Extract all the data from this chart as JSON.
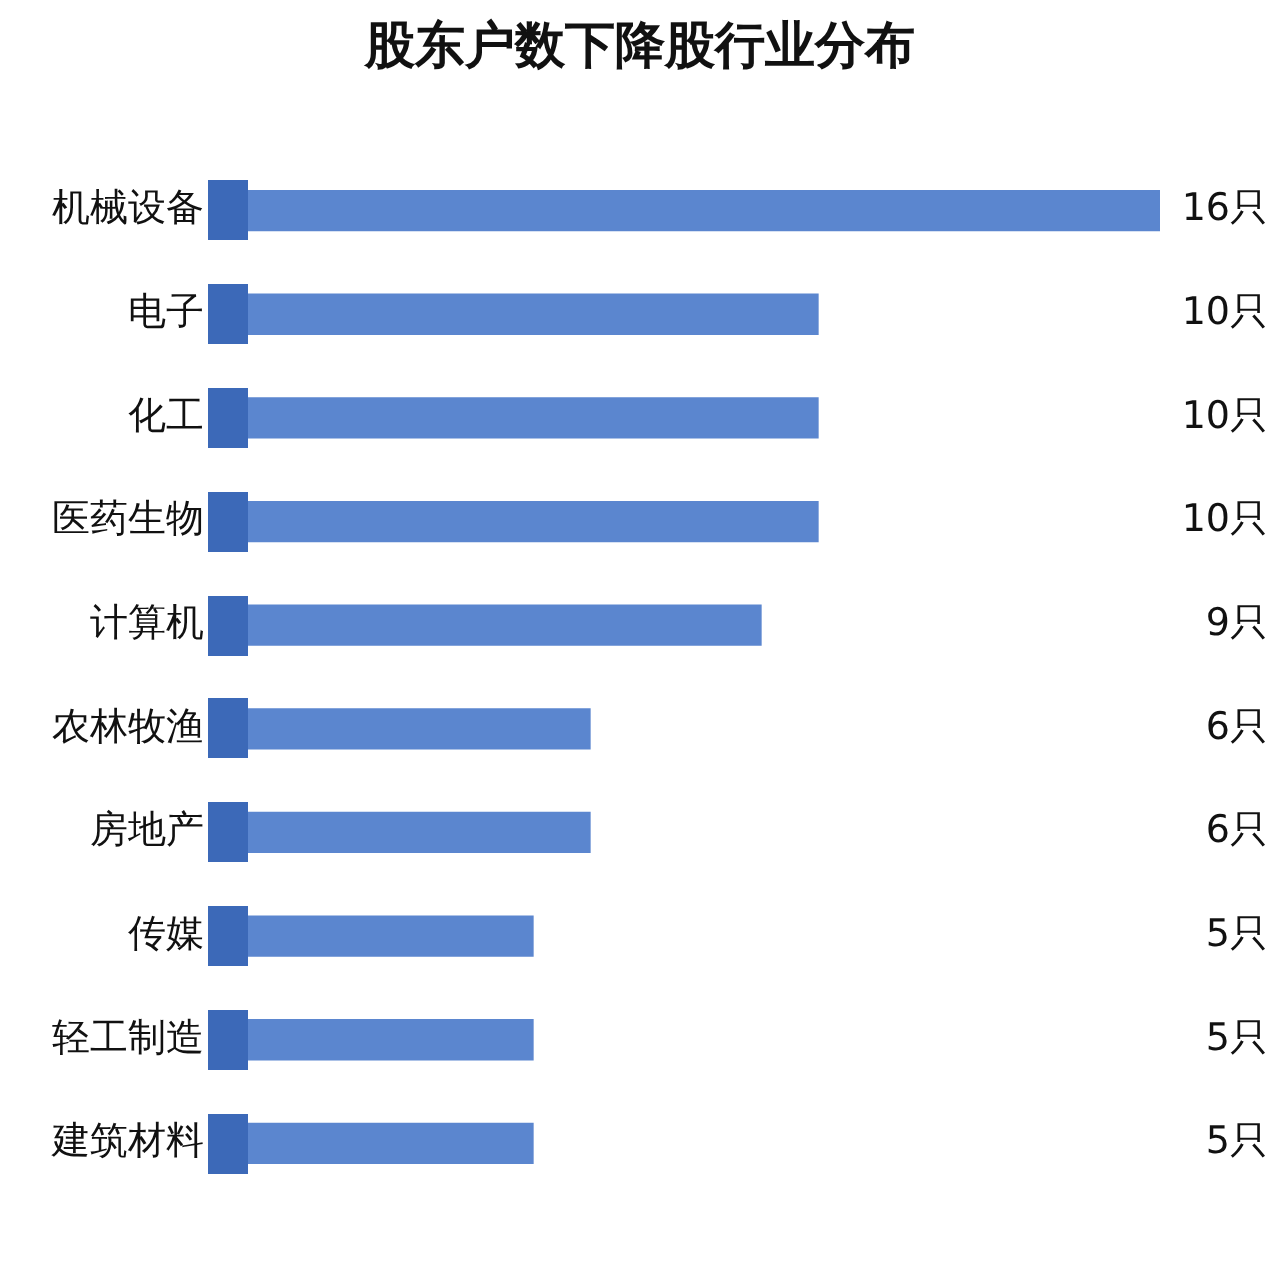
{
  "chart_data": {
    "type": "bar",
    "orientation": "horizontal",
    "title": "股东户数下降股行业分布",
    "categories": [
      "机械设备",
      "电子",
      "化工",
      "医药生物",
      "计算机",
      "农林牧渔",
      "房地产",
      "传媒",
      "轻工制造",
      "建筑材料"
    ],
    "values": [
      16,
      10,
      10,
      10,
      9,
      6,
      6,
      5,
      5,
      5
    ],
    "value_labels": [
      "16只",
      "10只",
      "10只",
      "10只",
      "9只",
      "6只",
      "6只",
      "5只",
      "5只",
      "5只"
    ],
    "color": "#5b86cf",
    "tick_labels": "y",
    "grid": false,
    "legend": false
  }
}
